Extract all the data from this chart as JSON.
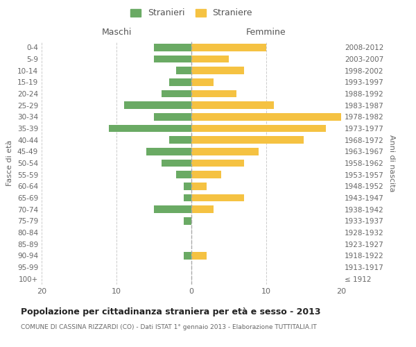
{
  "age_groups": [
    "100+",
    "95-99",
    "90-94",
    "85-89",
    "80-84",
    "75-79",
    "70-74",
    "65-69",
    "60-64",
    "55-59",
    "50-54",
    "45-49",
    "40-44",
    "35-39",
    "30-34",
    "25-29",
    "20-24",
    "15-19",
    "10-14",
    "5-9",
    "0-4"
  ],
  "birth_years": [
    "≤ 1912",
    "1913-1917",
    "1918-1922",
    "1923-1927",
    "1928-1932",
    "1933-1937",
    "1938-1942",
    "1943-1947",
    "1948-1952",
    "1953-1957",
    "1958-1962",
    "1963-1967",
    "1968-1972",
    "1973-1977",
    "1978-1982",
    "1983-1987",
    "1988-1992",
    "1993-1997",
    "1998-2002",
    "2003-2007",
    "2008-2012"
  ],
  "males": [
    0,
    0,
    1,
    0,
    0,
    1,
    5,
    1,
    1,
    2,
    4,
    6,
    3,
    11,
    5,
    9,
    4,
    3,
    2,
    5,
    5
  ],
  "females": [
    0,
    0,
    2,
    0,
    0,
    0,
    3,
    7,
    2,
    4,
    7,
    9,
    15,
    18,
    20,
    11,
    6,
    3,
    7,
    5,
    10
  ],
  "male_color": "#6aaa64",
  "female_color": "#f5c242",
  "title": "Popolazione per cittadinanza straniera per età e sesso - 2013",
  "subtitle": "COMUNE DI CASSINA RIZZARDI (CO) - Dati ISTAT 1° gennaio 2013 - Elaborazione TUTTITALIA.IT",
  "xlabel_left": "Maschi",
  "xlabel_right": "Femmine",
  "ylabel_left": "Fasce di età",
  "ylabel_right": "Anni di nascita",
  "legend_male": "Stranieri",
  "legend_female": "Straniere",
  "xlim": 20,
  "background_color": "#ffffff",
  "grid_color": "#cccccc"
}
